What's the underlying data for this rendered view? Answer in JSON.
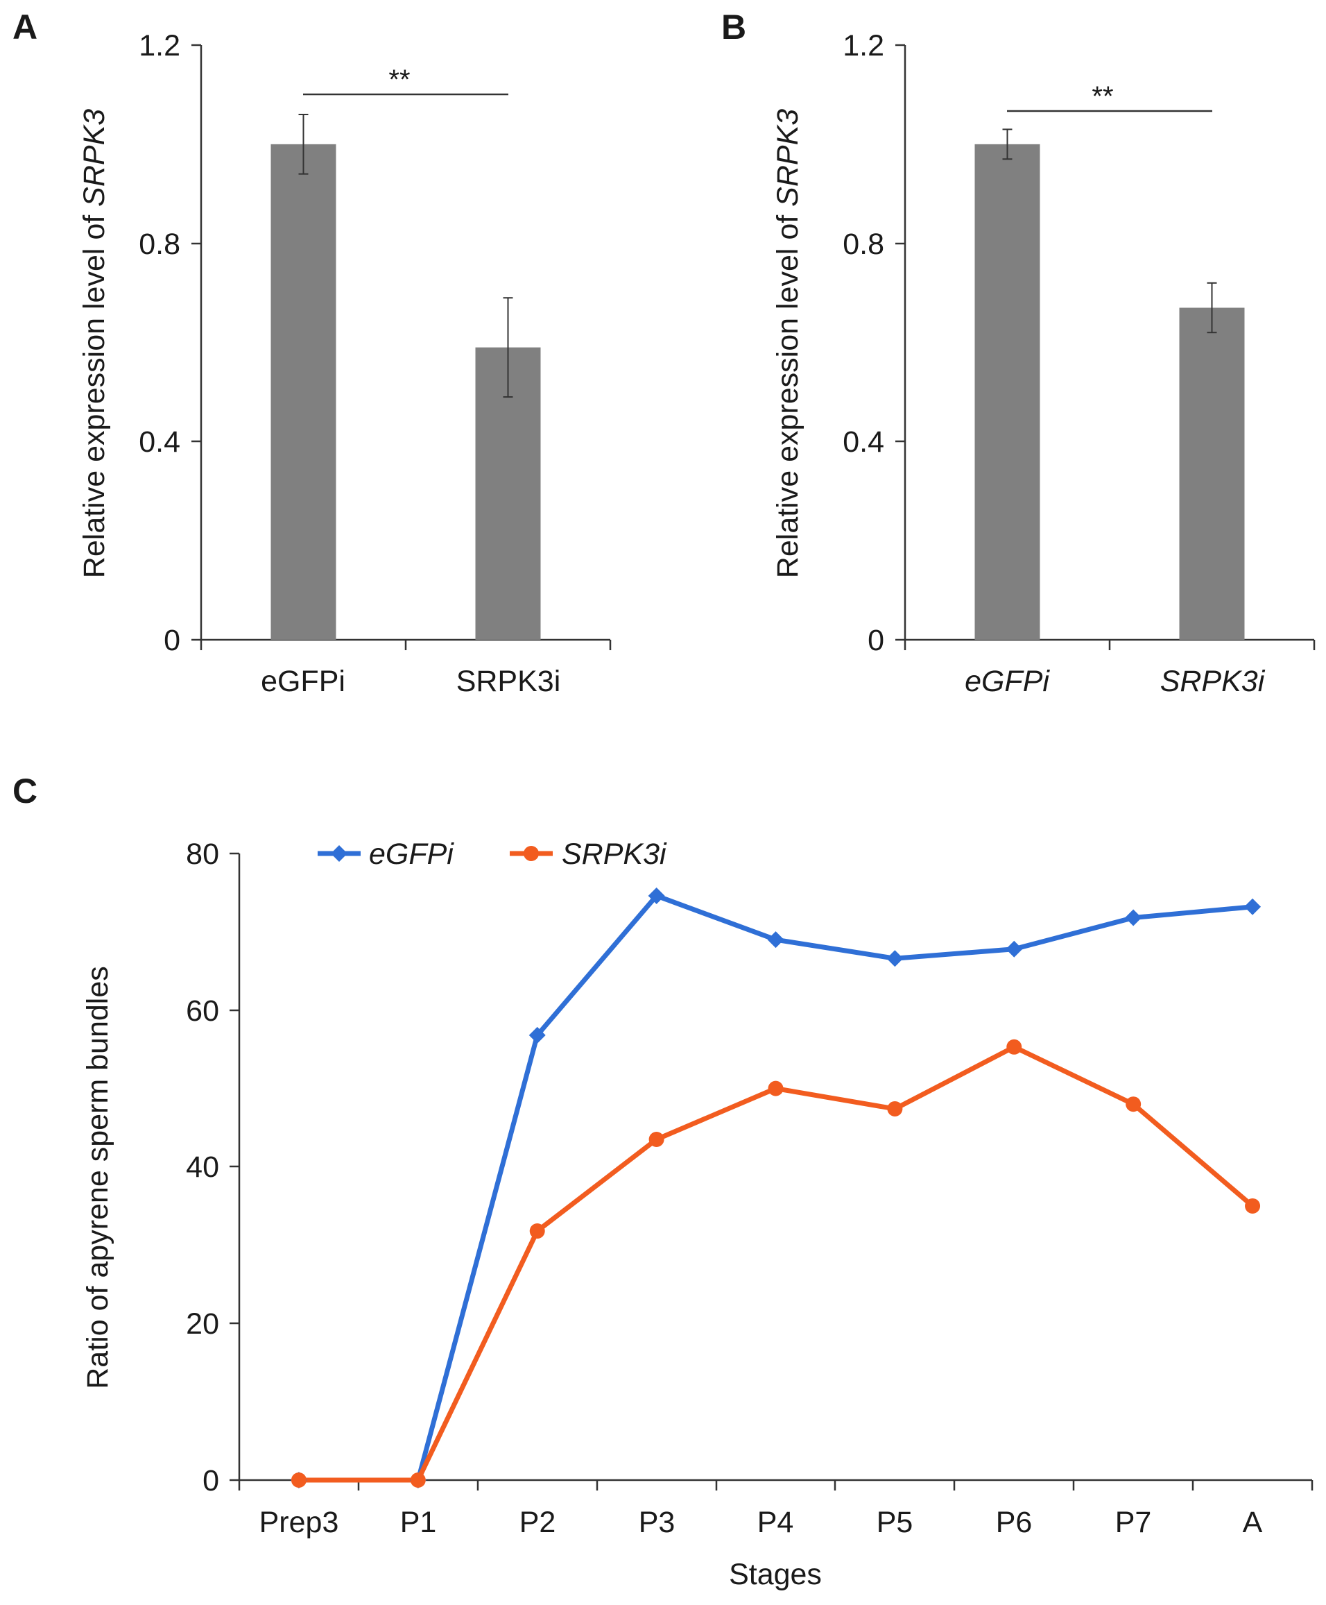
{
  "colors": {
    "bar": "#808080",
    "series_eGFPi": "#2f6fd6",
    "series_SRPK3i": "#f25c1f"
  },
  "chart_data": [
    {
      "panel": "A",
      "type": "bar",
      "ylabel_prefix": "Relative expression level of ",
      "ylabel_italic": "SRPK3",
      "categories": [
        "eGFPi",
        "SRPK3i"
      ],
      "category_italic": false,
      "values": [
        1.0,
        0.59
      ],
      "errors": [
        0.06,
        0.1
      ],
      "ylim": [
        0,
        1.2
      ],
      "yticks": [
        "0",
        "0.4",
        "0.8",
        "1.2"
      ],
      "significance": "**"
    },
    {
      "panel": "B",
      "type": "bar",
      "ylabel_prefix": "Relative expression level of ",
      "ylabel_italic": "SRPK3",
      "categories": [
        "eGFPi",
        "SRPK3i"
      ],
      "category_italic": true,
      "values": [
        1.0,
        0.67
      ],
      "errors": [
        0.03,
        0.05
      ],
      "ylim": [
        0,
        1.2
      ],
      "yticks": [
        "0",
        "0.4",
        "0.8",
        "1.2"
      ],
      "significance": "**"
    },
    {
      "panel": "C",
      "type": "line",
      "ylabel": "Ratio of apyrene sperm bundles",
      "xlabel": "Stages",
      "categories": [
        "Prep3",
        "P1",
        "P2",
        "P3",
        "P4",
        "P5",
        "P6",
        "P7",
        "A"
      ],
      "ylim": [
        0,
        80
      ],
      "yticks": [
        "0",
        "20",
        "40",
        "60",
        "80"
      ],
      "legend_position": "top-left",
      "series": [
        {
          "name": "eGFPi",
          "marker": "diamond",
          "values": [
            0,
            0,
            56.8,
            74.6,
            69.0,
            66.6,
            67.8,
            71.8,
            73.2
          ]
        },
        {
          "name": "SRPK3i",
          "marker": "circle",
          "values": [
            0,
            0,
            31.8,
            43.5,
            50.0,
            47.4,
            55.3,
            48.0,
            35.0
          ]
        }
      ]
    }
  ]
}
